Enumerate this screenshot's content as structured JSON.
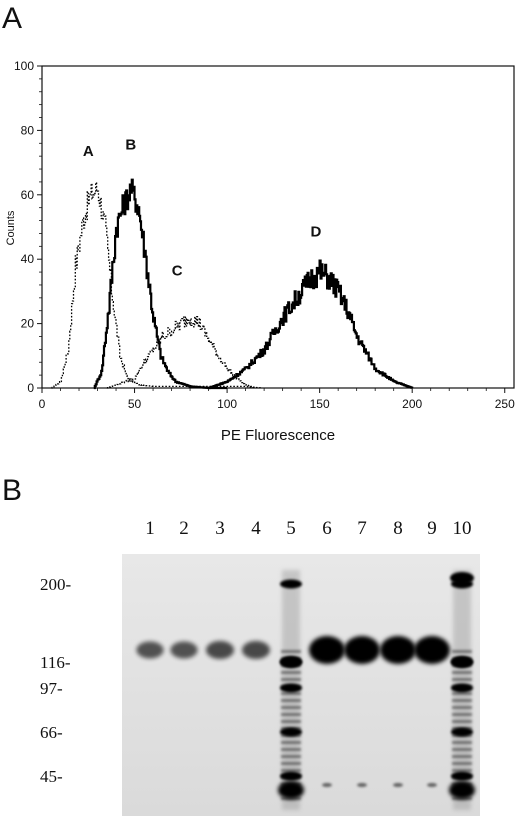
{
  "figure": {
    "panel_a_label": "A",
    "panel_b_label": "B"
  },
  "chart_data": [
    {
      "type": "line",
      "title": "",
      "xlabel": "PE Fluorescence",
      "ylabel": "Counts",
      "xlim": [
        0,
        255
      ],
      "ylim": [
        0,
        100
      ],
      "x_ticks": [
        0,
        50,
        100,
        150,
        200,
        250
      ],
      "y_ticks": [
        0,
        20,
        40,
        60,
        80,
        100
      ],
      "grid": false,
      "series": [
        {
          "name": "A",
          "style": "dotted",
          "x": [
            5,
            10,
            14,
            18,
            22,
            26,
            30,
            34,
            38,
            42,
            46,
            52,
            60,
            70,
            80,
            95,
            110,
            118
          ],
          "y": [
            0,
            2,
            12,
            38,
            52,
            60,
            62,
            50,
            28,
            10,
            3,
            1,
            0.5,
            0.5,
            0.5,
            0.5,
            0.5,
            0
          ]
        },
        {
          "name": "B",
          "style": "solid",
          "x": [
            28,
            32,
            36,
            40,
            44,
            48,
            52,
            56,
            60,
            64,
            68,
            72,
            80,
            90,
            100
          ],
          "y": [
            0,
            5,
            25,
            50,
            57,
            62,
            56,
            40,
            22,
            10,
            5,
            2,
            0.5,
            0,
            0
          ]
        },
        {
          "name": "C",
          "style": "dotted",
          "x": [
            35,
            45,
            50,
            55,
            60,
            65,
            70,
            75,
            80,
            85,
            90,
            95,
            100,
            105,
            110,
            115
          ],
          "y": [
            0,
            2,
            3,
            8,
            12,
            16,
            18,
            20,
            22,
            20,
            15,
            10,
            6,
            3,
            1,
            0
          ]
        },
        {
          "name": "D",
          "style": "solid",
          "x": [
            90,
            100,
            110,
            120,
            130,
            140,
            145,
            150,
            155,
            160,
            165,
            170,
            180,
            190,
            200
          ],
          "y": [
            0,
            2,
            6,
            12,
            22,
            30,
            34,
            36,
            34,
            30,
            24,
            16,
            6,
            2,
            0
          ]
        }
      ],
      "annotations": [
        "A",
        "B",
        "C",
        "D"
      ]
    },
    {
      "type": "gel",
      "lane_labels": [
        "1",
        "2",
        "3",
        "4",
        "5",
        "6",
        "7",
        "8",
        "9",
        "10"
      ],
      "mw_markers": [
        {
          "label": "200-",
          "kda": 200
        },
        {
          "label": "116-",
          "kda": 116
        },
        {
          "label": "97-",
          "kda": 97
        },
        {
          "label": "66-",
          "kda": 66
        },
        {
          "label": "45-",
          "kda": 45
        }
      ],
      "main_band_kda": 130,
      "band_intensity": [
        0.45,
        0.45,
        0.5,
        0.5,
        0.5,
        1.0,
        1.0,
        1.0,
        1.0,
        0.9
      ],
      "marker_lanes": [
        5,
        10
      ]
    }
  ]
}
